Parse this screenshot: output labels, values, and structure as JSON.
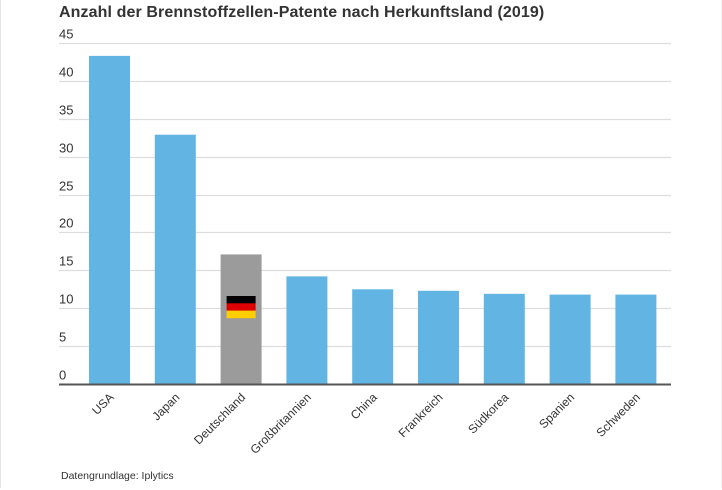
{
  "chart_data": {
    "type": "bar",
    "title": "Anzahl der Brennstoffzellen-Patente nach Herkunftsland (2019)",
    "xlabel": "",
    "ylabel": "",
    "ylim": [
      0,
      45
    ],
    "yticks": [
      0,
      5,
      10,
      15,
      20,
      25,
      30,
      35,
      40,
      45
    ],
    "grid": true,
    "legend": "none",
    "categories": [
      "USA",
      "Japan",
      "Deutschland",
      "Großbritannien",
      "China",
      "Frankreich",
      "Südkorea",
      "Spanien",
      "Schweden"
    ],
    "values": [
      43.3,
      32.9,
      17.1,
      14.2,
      12.5,
      12.3,
      11.9,
      11.8,
      11.8
    ],
    "highlight": {
      "category": "Deutschland",
      "color": "#9b9b9b",
      "icon": "german-flag-icon"
    },
    "bar_color": "#62b5e3",
    "flag_colors": [
      "#000000",
      "#dd0000",
      "#ffce00"
    ],
    "source": "Datengrundlage: Iplytics"
  }
}
